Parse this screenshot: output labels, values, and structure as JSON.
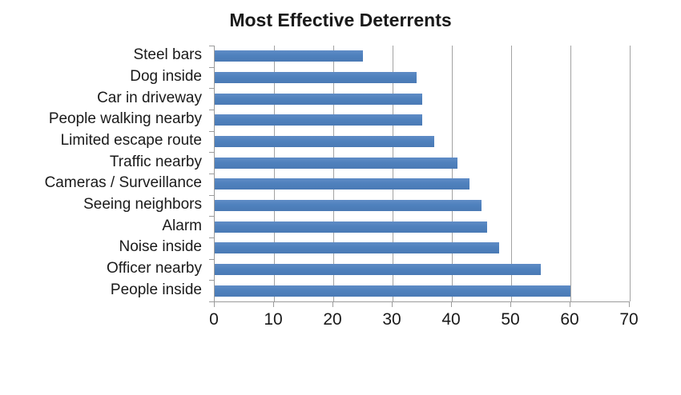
{
  "chart_data": {
    "type": "bar",
    "orientation": "horizontal",
    "title": "Most Effective Deterrents",
    "categories": [
      "Steel bars",
      "Dog inside",
      "Car in driveway",
      "People walking nearby",
      "Limited escape route",
      "Traffic nearby",
      "Cameras / Surveillance",
      "Seeing neighbors",
      "Alarm",
      "Noise inside",
      "Officer nearby",
      "People inside"
    ],
    "values": [
      25,
      34,
      35,
      35,
      37,
      41,
      43,
      45,
      46,
      48,
      55,
      60
    ],
    "xlabel": "",
    "ylabel": "",
    "xlim": [
      0,
      70
    ],
    "xticks": [
      0,
      10,
      20,
      30,
      40,
      50,
      60,
      70
    ],
    "grid": "vertical-gridlines-on",
    "legend": "none",
    "bar_color": "#4f81bd",
    "gridline_color": "#a3a3a3",
    "axis_color": "#9b9b9b",
    "text_color": "#1a1a1a"
  }
}
